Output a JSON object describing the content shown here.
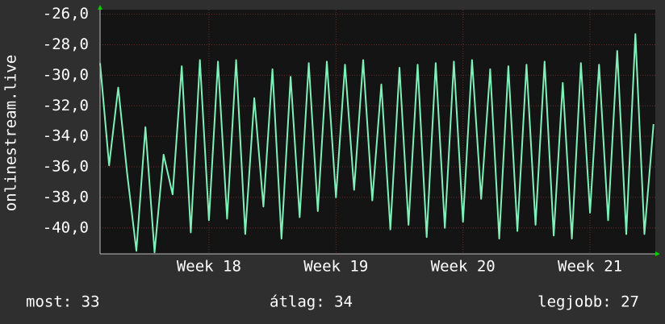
{
  "chart_data": {
    "type": "line",
    "ylabel": "onlinestream.live",
    "x": [
      0,
      0.5,
      1,
      1.5,
      2,
      2.5,
      3,
      3.5,
      4,
      4.5,
      5,
      5.5,
      6,
      6.5,
      7,
      7.5,
      8,
      8.5,
      9,
      9.5,
      10,
      10.5,
      11,
      11.5,
      12,
      12.5,
      13,
      13.5,
      14,
      14.5,
      15,
      15.5,
      16,
      16.5,
      17,
      17.5,
      18,
      18.5,
      19,
      19.5,
      20,
      20.5,
      21,
      21.5,
      22,
      22.5,
      23,
      23.5,
      24,
      24.5,
      25,
      25.5,
      26,
      26.5,
      27,
      27.5,
      28,
      28.5,
      29,
      29.5,
      30,
      30.5
    ],
    "series": [
      {
        "color": "#7ff0b8",
        "values": [
          -29.2,
          -35.9,
          -30.8,
          -36.5,
          -41.5,
          -33.4,
          -41.6,
          -35.2,
          -37.8,
          -29.4,
          -40.3,
          -29.0,
          -39.5,
          -29.1,
          -39.4,
          -29.0,
          -40.4,
          -31.5,
          -38.6,
          -29.6,
          -40.7,
          -30.1,
          -39.3,
          -29.2,
          -38.9,
          -29.1,
          -38.0,
          -29.3,
          -37.5,
          -29.0,
          -38.2,
          -30.6,
          -40.1,
          -29.5,
          -39.8,
          -29.3,
          -40.6,
          -29.2,
          -40.0,
          -29.1,
          -39.6,
          -29.0,
          -38.1,
          -29.6,
          -40.7,
          -29.4,
          -40.2,
          -29.3,
          -39.8,
          -29.1,
          -40.5,
          -30.5,
          -40.7,
          -29.2,
          -39.0,
          -29.3,
          -39.5,
          -28.4,
          -40.4,
          -27.3,
          -40.4,
          -33.2
        ]
      }
    ],
    "xlim": [
      0,
      30.6
    ],
    "xticks": [
      {
        "value": 6,
        "label": "Week 18"
      },
      {
        "value": 13,
        "label": "Week 19"
      },
      {
        "value": 20,
        "label": "Week 20"
      },
      {
        "value": 27,
        "label": "Week 21"
      }
    ],
    "ylim": [
      -41.7,
      -25.7
    ],
    "yticks": [
      {
        "value": -26,
        "label": "-26,0"
      },
      {
        "value": -28,
        "label": "-28,0"
      },
      {
        "value": -30,
        "label": "-30,0"
      },
      {
        "value": -32,
        "label": "-32,0"
      },
      {
        "value": -34,
        "label": "-34,0"
      },
      {
        "value": -36,
        "label": "-36,0"
      },
      {
        "value": -38,
        "label": "-38,0"
      },
      {
        "value": -40,
        "label": "-40,0"
      }
    ],
    "grid": true,
    "footer": [
      "most: 33",
      "átlag: 34",
      "legjobb: 27"
    ]
  }
}
